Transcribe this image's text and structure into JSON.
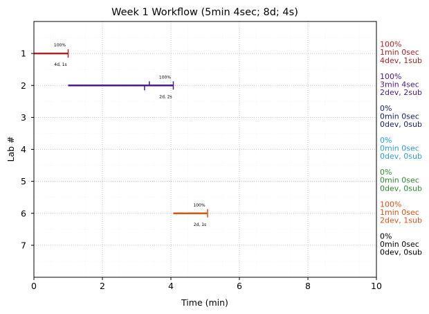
{
  "chart_data": {
    "type": "gantt",
    "title": "Week 1 Workflow (5min 4sec; 8d; 4s)",
    "xlabel": "Time (min)",
    "ylabel": "Lab #",
    "xlim": [
      0,
      10
    ],
    "ylim": [
      0,
      8
    ],
    "x_ticks": [
      "0",
      "2",
      "4",
      "6",
      "8",
      "10"
    ],
    "y_ticks": [
      "1",
      "2",
      "3",
      "4",
      "5",
      "6",
      "7"
    ],
    "grid": true,
    "labs": [
      {
        "lab": 1,
        "color": "#b22222",
        "start": 0.0,
        "end": 1.0,
        "marks": [
          1.0
        ],
        "pct_label": "100%",
        "below_label": "4d, 1s",
        "side": [
          "100%",
          "1min 0sec",
          "4dev, 1sub"
        ]
      },
      {
        "lab": 2,
        "color": "#4b1a8c",
        "start": 1.0,
        "end": 4.07,
        "marks": [
          3.23,
          3.37,
          4.07
        ],
        "pct_label": "100%",
        "below_label": "2d, 2s",
        "side": [
          "100%",
          "3min 4sec",
          "2dev, 2sub"
        ]
      },
      {
        "lab": 3,
        "color": "#1a2070",
        "side": [
          "0%",
          "0min 0sec",
          "0dev, 0sub"
        ]
      },
      {
        "lab": 4,
        "color": "#2a9fd6",
        "side": [
          "0%",
          "0min 0sec",
          "0dev, 0sub"
        ]
      },
      {
        "lab": 5,
        "color": "#2e8b2e",
        "side": [
          "0%",
          "0min 0sec",
          "0dev, 0sub"
        ]
      },
      {
        "lab": 6,
        "color": "#e0520f",
        "start": 4.07,
        "end": 5.07,
        "marks": [
          5.07
        ],
        "pct_label": "100%",
        "below_label": "2d, 1s",
        "side": [
          "100%",
          "1min 0sec",
          "2dev, 1sub"
        ]
      },
      {
        "lab": 7,
        "color": "#000000",
        "side": [
          "0%",
          "0min 0sec",
          "0dev, 0sub"
        ]
      }
    ]
  }
}
